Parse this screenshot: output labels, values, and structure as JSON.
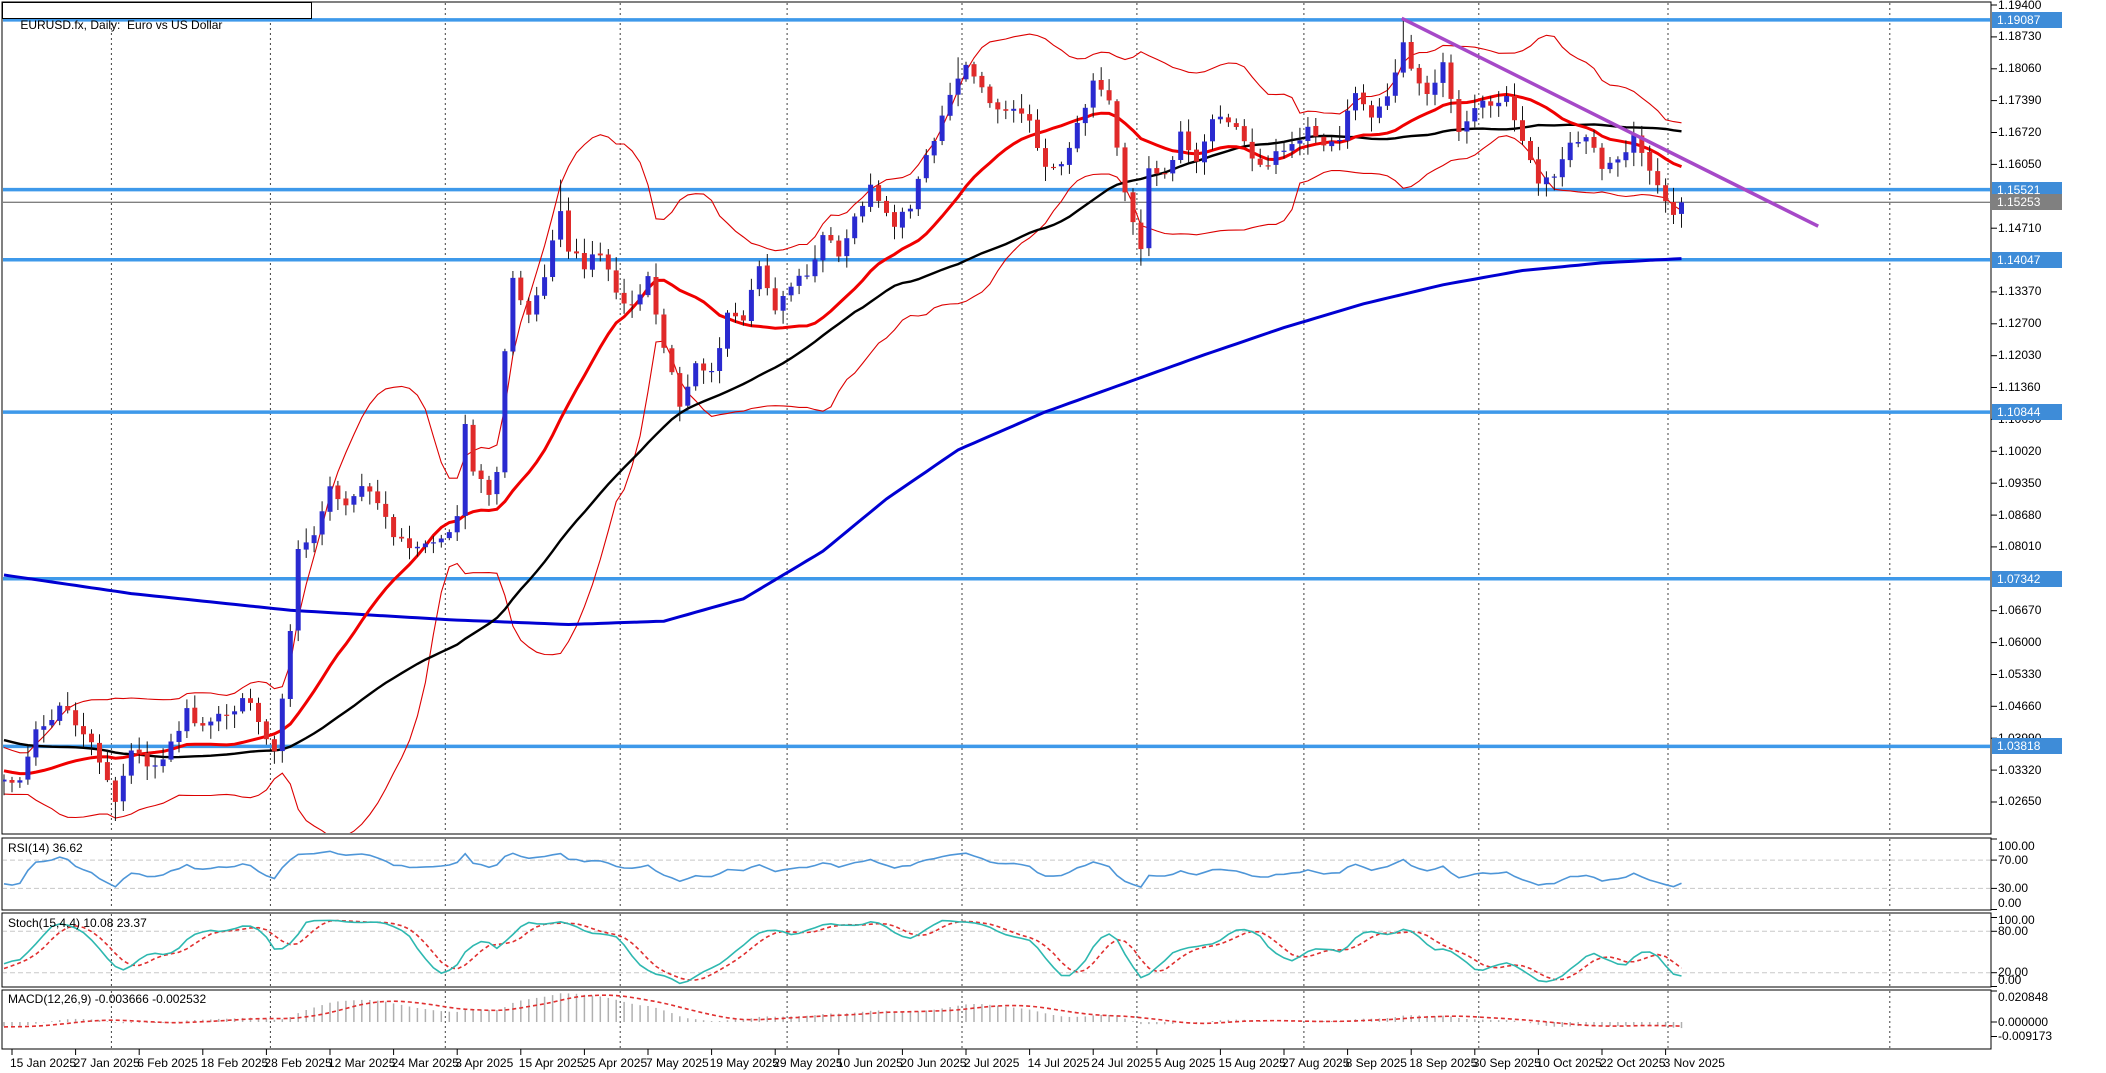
{
  "window": {
    "title": "EURUSD.fx, Daily:  Euro vs US Dollar"
  },
  "chart_data": {
    "type": "candlestick",
    "symbol": "EURUSD.fx",
    "timeframe": "Daily",
    "description": "Euro vs US Dollar",
    "last_price": 1.15253,
    "x_axis": {
      "labels": [
        "15 Jan 2025",
        "27 Jan 2025",
        "6 Feb 2025",
        "18 Feb 2025",
        "28 Feb 2025",
        "12 Mar 2025",
        "24 Mar 2025",
        "3 Apr 2025",
        "15 Apr 2025",
        "25 Apr 2025",
        "7 May 2025",
        "19 May 2025",
        "29 May 2025",
        "10 Jun 2025",
        "20 Jun 2025",
        "2 Jul 2025",
        "14 Jul 2025",
        "24 Jul 2025",
        "5 Aug 2025",
        "15 Aug 2025",
        "27 Aug 2025",
        "8 Sep 2025",
        "18 Sep 2025",
        "30 Sep 2025",
        "10 Oct 2025",
        "22 Oct 2025",
        "3 Nov 2025"
      ],
      "bars_per_label": 8
    },
    "y_axis": {
      "tick_labels": [
        "1.19400",
        "1.18730",
        "1.18060",
        "1.17390",
        "1.16720",
        "1.16050",
        "1.14710",
        "1.13370",
        "1.12700",
        "1.12030",
        "1.11360",
        "1.10690",
        "1.10020",
        "1.09350",
        "1.08680",
        "1.08010",
        "1.06670",
        "1.06000",
        "1.05330",
        "1.04660",
        "1.03990",
        "1.03320",
        "1.02650"
      ],
      "visible_min": 1.0205,
      "visible_max": 1.1946
    },
    "price_anchors": [
      [
        -65,
        1.061
      ],
      [
        -45,
        1.048
      ],
      [
        -25,
        1.039
      ],
      [
        -10,
        1.033
      ],
      [
        -4,
        1.0292
      ],
      [
        -1,
        1.0312
      ],
      [
        1,
        1.0305
      ],
      [
        3,
        1.0418
      ],
      [
        6,
        1.0462
      ],
      [
        8,
        1.0432
      ],
      [
        10,
        1.0392
      ],
      [
        13,
        1.0262
      ],
      [
        15,
        1.0382
      ],
      [
        18,
        1.0332
      ],
      [
        20,
        1.0382
      ],
      [
        22,
        1.0452
      ],
      [
        24,
        1.0422
      ],
      [
        26,
        1.0446
      ],
      [
        28,
        1.0466
      ],
      [
        30,
        1.0482
      ],
      [
        32,
        1.0396
      ],
      [
        33,
        1.0376
      ],
      [
        34,
        1.0486
      ],
      [
        35,
        1.0622
      ],
      [
        36,
        1.0792
      ],
      [
        38,
        1.0836
      ],
      [
        40,
        1.0922
      ],
      [
        42,
        1.0882
      ],
      [
        44,
        1.0926
      ],
      [
        46,
        1.0902
      ],
      [
        48,
        1.0822
      ],
      [
        50,
        1.0796
      ],
      [
        52,
        1.0806
      ],
      [
        54,
        1.0818
      ],
      [
        56,
        1.0856
      ],
      [
        57,
        1.1052
      ],
      [
        58,
        1.0962
      ],
      [
        60,
        1.0906
      ],
      [
        61,
        1.0956
      ],
      [
        62,
        1.1202
      ],
      [
        63,
        1.1356
      ],
      [
        65,
        1.1286
      ],
      [
        67,
        1.1368
      ],
      [
        69,
        1.1512
      ],
      [
        70,
        1.1426
      ],
      [
        72,
        1.1392
      ],
      [
        74,
        1.1422
      ],
      [
        76,
        1.1336
      ],
      [
        78,
        1.1306
      ],
      [
        80,
        1.1372
      ],
      [
        82,
        1.1228
      ],
      [
        84,
        1.1092
      ],
      [
        86,
        1.1178
      ],
      [
        88,
        1.1162
      ],
      [
        90,
        1.1288
      ],
      [
        92,
        1.1282
      ],
      [
        94,
        1.1388
      ],
      [
        96,
        1.1292
      ],
      [
        98,
        1.1348
      ],
      [
        100,
        1.1372
      ],
      [
        102,
        1.1448
      ],
      [
        104,
        1.1422
      ],
      [
        106,
        1.1492
      ],
      [
        108,
        1.1552
      ],
      [
        111,
        1.1482
      ],
      [
        113,
        1.1522
      ],
      [
        115,
        1.1622
      ],
      [
        117,
        1.1702
      ],
      [
        119,
        1.1795
      ],
      [
        120,
        1.1806
      ],
      [
        122,
        1.1762
      ],
      [
        124,
        1.1722
      ],
      [
        126,
        1.1722
      ],
      [
        128,
        1.1692
      ],
      [
        130,
        1.1602
      ],
      [
        132,
        1.1598
      ],
      [
        134,
        1.1692
      ],
      [
        136,
        1.1777
      ],
      [
        138,
        1.1742
      ],
      [
        140,
        1.1548
      ],
      [
        142,
        1.1418
      ],
      [
        143,
        1.1592
      ],
      [
        145,
        1.1578
      ],
      [
        147,
        1.1668
      ],
      [
        149,
        1.1618
      ],
      [
        151,
        1.1708
      ],
      [
        153,
        1.1702
      ],
      [
        155,
        1.1648
      ],
      [
        157,
        1.1602
      ],
      [
        159,
        1.1622
      ],
      [
        161,
        1.1642
      ],
      [
        163,
        1.1688
      ],
      [
        165,
        1.1642
      ],
      [
        167,
        1.1658
      ],
      [
        169,
        1.1762
      ],
      [
        171,
        1.1702
      ],
      [
        173,
        1.1738
      ],
      [
        175,
        1.1872
      ],
      [
        176,
        1.1815
      ],
      [
        178,
        1.1748
      ],
      [
        180,
        1.1818
      ],
      [
        182,
        1.1668
      ],
      [
        184,
        1.1732
      ],
      [
        186,
        1.1732
      ],
      [
        188,
        1.1748
      ],
      [
        190,
        1.1658
      ],
      [
        192,
        1.1562
      ],
      [
        194,
        1.1572
      ],
      [
        196,
        1.1648
      ],
      [
        198,
        1.1668
      ],
      [
        200,
        1.1602
      ],
      [
        202,
        1.1618
      ],
      [
        204,
        1.1658
      ],
      [
        206,
        1.1602
      ],
      [
        207,
        1.1558
      ],
      [
        208,
        1.1528
      ],
      [
        209,
        1.1508
      ],
      [
        210,
        1.15253
      ]
    ],
    "extremes": [
      [
        175,
        "high",
        1.19087
      ],
      [
        69,
        "high",
        1.1573
      ],
      [
        119,
        "high",
        1.183
      ],
      [
        13,
        "low",
        1.0225
      ],
      [
        142,
        "low",
        1.1392
      ],
      [
        84,
        "low",
        1.1065
      ]
    ],
    "ma200_anchors": [
      [
        -1,
        1.0742
      ],
      [
        15,
        1.0703
      ],
      [
        35,
        1.0668
      ],
      [
        55,
        1.0648
      ],
      [
        70,
        1.0638
      ],
      [
        82,
        1.0645
      ],
      [
        92,
        1.0692
      ],
      [
        102,
        1.0792
      ],
      [
        110,
        1.0902
      ],
      [
        119,
        1.1005
      ],
      [
        130,
        1.1085
      ],
      [
        140,
        1.1145
      ],
      [
        150,
        1.1205
      ],
      [
        160,
        1.1262
      ],
      [
        170,
        1.1312
      ],
      [
        180,
        1.1352
      ],
      [
        190,
        1.1382
      ],
      [
        200,
        1.1398
      ],
      [
        210,
        1.1407
      ]
    ],
    "month_separator_days": [
      12.5,
      32.5,
      54.5,
      76.5,
      97.5,
      119.5,
      141.5,
      162.5,
      184.5,
      208.3,
      236.2
    ],
    "levels": [
      {
        "label": "1.19087",
        "price": 1.19087
      },
      {
        "label": "1.15521",
        "price": 1.15521
      },
      {
        "label": "1.14047",
        "price": 1.14047
      },
      {
        "label": "1.10844",
        "price": 1.10844
      },
      {
        "label": "1.07342",
        "price": 1.07342
      },
      {
        "label": "1.03818",
        "price": 1.03818
      }
    ],
    "current_price": {
      "label": "1.15253",
      "price": 1.15253
    },
    "trendline": {
      "from_day": 174.8,
      "from_price": 1.1912,
      "to_day": 227.2,
      "to_price": 1.1475
    },
    "indicators": {
      "rsi": {
        "label": "RSI(14) 36.62",
        "period": 14,
        "value": 36.62,
        "guide_levels": [
          70,
          30
        ],
        "tick_labels": [
          "100.00",
          "70.00",
          "30.00",
          "0.00"
        ]
      },
      "stoch": {
        "label": "Stoch(15,4,4) 10.08 23.37",
        "k": 10.08,
        "d": 23.37,
        "guide_levels": [
          80,
          20
        ],
        "tick_labels": [
          "100.00",
          "80.00",
          "20.00",
          "0.00"
        ]
      },
      "macd": {
        "label": "MACD(12,26,9) -0.003666 -0.002532",
        "macd": -0.003666,
        "signal": -0.002532,
        "tick_labels": [
          "0.020848",
          "0.000000",
          "-0.009173"
        ]
      }
    },
    "colors": {
      "background": "#FFFFFF",
      "bull": "#2A2AD0",
      "bear": "#E02A2A",
      "wick": "#151515",
      "sma20": "#F00000",
      "sma50": "#000000",
      "sma200": "#0000D2",
      "bands": "#DC0000",
      "level_line": "#3E99EA",
      "badge_blue": "#3E8CD8",
      "current_line": "#808080",
      "trendline": "#A649C8",
      "rsi_line": "#4E96D8",
      "stoch_k": "#2EB8B0",
      "stoch_d": "#E03030",
      "macd_hist": "#B0B0B0",
      "macd_signal": "#E03030",
      "separator": "#404040",
      "guide_dash": "#C8C8C8"
    }
  }
}
